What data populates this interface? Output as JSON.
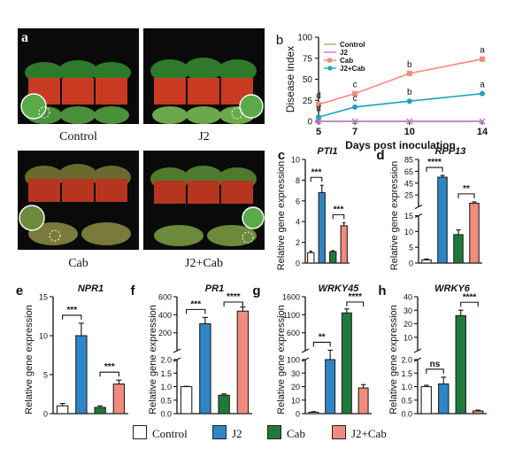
{
  "figure": {
    "photos": [
      {
        "letter": "a",
        "caption": "Control"
      },
      {
        "letter": "",
        "caption": "J2"
      },
      {
        "letter": "",
        "caption": "Cab"
      },
      {
        "letter": "",
        "caption": "J2+Cab"
      }
    ],
    "legend": [
      {
        "label": "Control",
        "color": "#ffffff"
      },
      {
        "label": "J2",
        "color": "#2f86c6"
      },
      {
        "label": "Cab",
        "color": "#1f7a3a"
      },
      {
        "label": "J2+Cab",
        "color": "#f28b7d"
      }
    ]
  },
  "chart_data": [
    {
      "panel": "b",
      "type": "line",
      "title": "",
      "xlabel": "Days post inoculation",
      "ylabel": "Disease index",
      "x": [
        5,
        7,
        10,
        14
      ],
      "xticks": [
        "5",
        "7",
        "10",
        "14"
      ],
      "ylim": [
        0,
        100
      ],
      "yticks": [
        "0",
        "25",
        "50",
        "75",
        "100"
      ],
      "legend_position": "top-left",
      "series": [
        {
          "name": "Control",
          "color": "#8fbf3f",
          "marker": "x",
          "values": [
            0,
            0,
            0,
            0
          ],
          "labels": []
        },
        {
          "name": "J2",
          "color": "#c77ad6",
          "marker": "x",
          "values": [
            0,
            0,
            0,
            0
          ],
          "labels": []
        },
        {
          "name": "Cab",
          "color": "#f28b7d",
          "marker": "square",
          "values": [
            20,
            33,
            57,
            74
          ],
          "labels": [
            "d",
            "c",
            "b",
            "a"
          ]
        },
        {
          "name": "J2+Cab",
          "color": "#1aa3c0",
          "marker": "circle",
          "values": [
            5,
            17,
            24,
            33
          ],
          "labels": [
            "d",
            "c",
            "b",
            "a"
          ]
        }
      ]
    },
    {
      "panel": "c",
      "type": "bar",
      "title": "PTI1",
      "ylabel": "Relative gene expression",
      "categories": [
        "Control",
        "J2",
        "Cab",
        "J2+Cab"
      ],
      "values": [
        1.0,
        6.8,
        1.1,
        3.6
      ],
      "errors": [
        0.15,
        0.7,
        0.1,
        0.3
      ],
      "ylim": [
        0,
        10
      ],
      "yticks": [
        "0",
        "2",
        "4",
        "6",
        "8",
        "10"
      ],
      "significance": [
        {
          "a": 0,
          "b": 1,
          "label": "***"
        },
        {
          "a": 2,
          "b": 3,
          "label": "***"
        }
      ]
    },
    {
      "panel": "d",
      "type": "bar",
      "title": "RPP13",
      "ylabel": "Relative gene expression",
      "categories": [
        "Control",
        "J2",
        "Cab",
        "J2+Cab"
      ],
      "values": [
        1.0,
        55,
        9,
        18
      ],
      "errors": [
        0.3,
        3,
        1.5,
        1.2
      ],
      "broken_axis": {
        "lower": [
          0,
          15
        ],
        "upper": [
          15,
          85
        ]
      },
      "yticks_lower": [
        "0",
        "5",
        "10",
        "15"
      ],
      "yticks_upper": [
        "25",
        "45",
        "65",
        "85"
      ],
      "significance": [
        {
          "a": 0,
          "b": 1,
          "label": "****"
        },
        {
          "a": 2,
          "b": 3,
          "label": "**"
        }
      ]
    },
    {
      "panel": "e",
      "type": "bar",
      "title": "NPR1",
      "ylabel": "Relative gene expression",
      "categories": [
        "Control",
        "J2",
        "Cab",
        "J2+Cab"
      ],
      "values": [
        1.0,
        10.0,
        0.8,
        3.8
      ],
      "errors": [
        0.3,
        1.6,
        0.2,
        0.5
      ],
      "ylim": [
        0,
        15
      ],
      "yticks": [
        "0",
        "5",
        "10",
        "15"
      ],
      "significance": [
        {
          "a": 0,
          "b": 1,
          "label": "***"
        },
        {
          "a": 2,
          "b": 3,
          "label": "***"
        }
      ]
    },
    {
      "panel": "f",
      "type": "bar",
      "title": "PR1",
      "ylabel": "Relative gene expression",
      "categories": [
        "Control",
        "J2",
        "Cab",
        "J2+Cab"
      ],
      "values": [
        1.0,
        300,
        0.68,
        440
      ],
      "errors": [
        0.01,
        70,
        0.05,
        45
      ],
      "broken_axis": {
        "lower": [
          0,
          2.0
        ],
        "upper": [
          2.0,
          600
        ]
      },
      "yticks_lower": [
        "0.0",
        "0.5",
        "1.0",
        "1.5",
        "2.0"
      ],
      "yticks_upper": [
        "200",
        "400",
        "600"
      ],
      "significance": [
        {
          "a": 0,
          "b": 1,
          "label": "***"
        },
        {
          "a": 2,
          "b": 3,
          "label": "****"
        }
      ]
    },
    {
      "panel": "g",
      "type": "bar",
      "title": "WRKY45",
      "ylabel": "Relative gene expression",
      "categories": [
        "Control",
        "J2",
        "Cab",
        "J2+Cab"
      ],
      "values": [
        1.0,
        100,
        1150,
        19
      ],
      "errors": [
        0.5,
        15,
        110,
        2.5
      ],
      "broken_axis": {
        "lower": [
          0,
          100
        ],
        "upper": [
          100,
          1600
        ]
      },
      "yticks_lower": [
        "0",
        "10",
        "20",
        "30",
        "100"
      ],
      "yticks_upper": [
        "600",
        "1100",
        "1600"
      ],
      "significance": [
        {
          "a": 0,
          "b": 1,
          "label": "**"
        },
        {
          "a": 2,
          "b": 3,
          "label": "****"
        }
      ]
    },
    {
      "panel": "h",
      "type": "bar",
      "title": "WRKY6",
      "ylabel": "Relative gene expression",
      "categories": [
        "Control",
        "J2",
        "Cab",
        "J2+Cab"
      ],
      "values": [
        1.0,
        1.1,
        26,
        0.1
      ],
      "errors": [
        0.05,
        0.25,
        4,
        0.03
      ],
      "broken_axis": {
        "lower": [
          0,
          2.0
        ],
        "upper": [
          2.0,
          40
        ]
      },
      "yticks_lower": [
        "0.0",
        "0.5",
        "1.0",
        "1.5",
        "2.0"
      ],
      "yticks_upper": [
        "10",
        "20",
        "30",
        "40"
      ],
      "significance": [
        {
          "a": 0,
          "b": 1,
          "label": "ns"
        },
        {
          "a": 2,
          "b": 3,
          "label": "****"
        }
      ]
    }
  ]
}
